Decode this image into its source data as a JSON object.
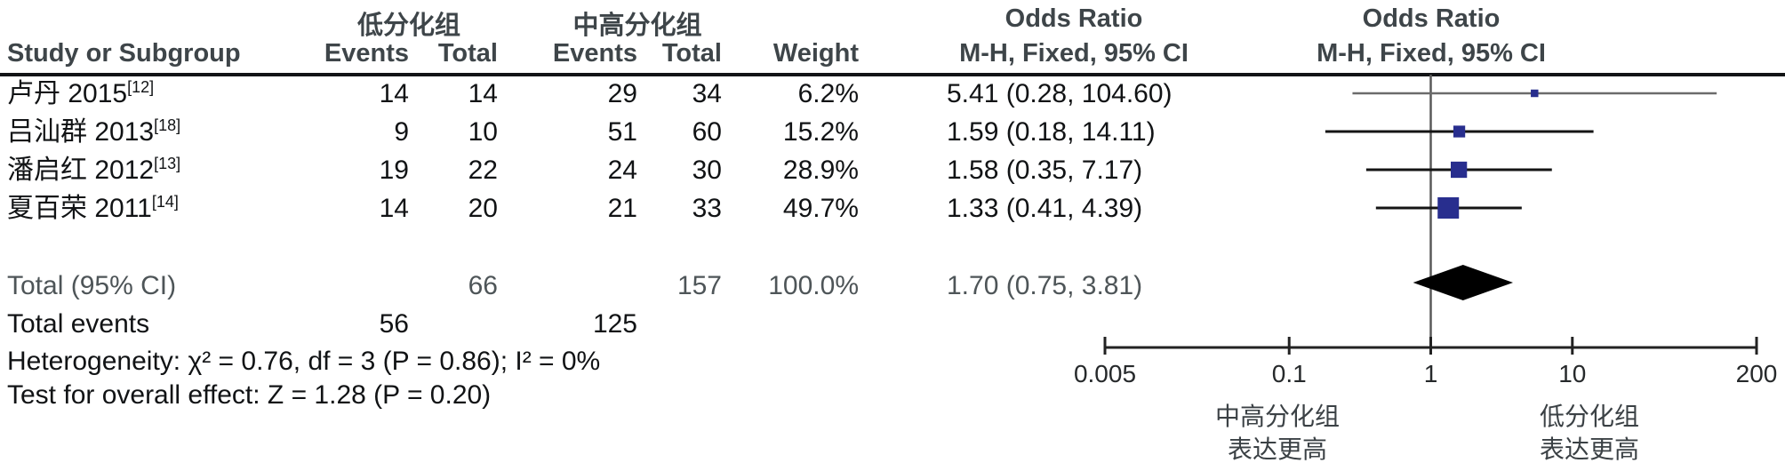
{
  "table": {
    "headers": {
      "study": "Study or Subgroup",
      "group1_name": "低分化组",
      "group2_name": "中高分化组",
      "events": "Events",
      "total": "Total",
      "weight": "Weight",
      "or_line1": "Odds Ratio",
      "or_line2": "M-H, Fixed, 95% CI",
      "plot_line1": "Odds Ratio",
      "plot_line2": "M-H, Fixed, 95% CI"
    },
    "rows": [
      {
        "study": "卢丹 2015",
        "ref": "[12]",
        "e1": "14",
        "t1": "14",
        "e2": "29",
        "t2": "34",
        "weight": "6.2%",
        "or_text": "5.41 (0.28, 104.60)"
      },
      {
        "study": "吕汕群 2013",
        "ref": "[18]",
        "e1": "9",
        "t1": "10",
        "e2": "51",
        "t2": "60",
        "weight": "15.2%",
        "or_text": "1.59 (0.18, 14.11)"
      },
      {
        "study": "潘启红 2012",
        "ref": "[13]",
        "e1": "19",
        "t1": "22",
        "e2": "24",
        "t2": "30",
        "weight": "28.9%",
        "or_text": "1.58 (0.35, 7.17)"
      },
      {
        "study": "夏百荣 2011",
        "ref": "[14]",
        "e1": "14",
        "t1": "20",
        "e2": "21",
        "t2": "33",
        "weight": "49.7%",
        "or_text": "1.33 (0.41, 4.39)"
      }
    ],
    "total_row": {
      "label": "Total (95% CI)",
      "t1": "66",
      "t2": "157",
      "weight": "100.0%",
      "or_text": "1.70 (0.75, 3.81)"
    },
    "total_events": {
      "label": "Total events",
      "e1": "56",
      "e2": "125"
    },
    "heterogeneity": "Heterogeneity: χ² = 0.76, df = 3 (P = 0.86); I² = 0%",
    "overall_effect": "Test for overall effect: Z = 1.28 (P = 0.20)"
  },
  "chart_data": {
    "type": "forest",
    "effect_measure": "Odds Ratio",
    "method": "M-H, Fixed, 95% CI",
    "scale": "log",
    "xlim": [
      0.005,
      200
    ],
    "axis_ticks": [
      "0.005",
      "0.1",
      "1",
      "10",
      "200"
    ],
    "axis_tick_values": [
      0.005,
      0.1,
      1,
      10,
      200
    ],
    "studies": [
      {
        "name": "卢丹 2015",
        "or": 5.41,
        "ci_low": 0.28,
        "ci_high": 104.6,
        "weight_pct": 6.2
      },
      {
        "name": "吕汕群 2013",
        "or": 1.59,
        "ci_low": 0.18,
        "ci_high": 14.11,
        "weight_pct": 15.2
      },
      {
        "name": "潘启红 2012",
        "or": 1.58,
        "ci_low": 0.35,
        "ci_high": 7.17,
        "weight_pct": 28.9
      },
      {
        "name": "夏百荣 2011",
        "or": 1.33,
        "ci_low": 0.41,
        "ci_high": 4.39,
        "weight_pct": 49.7
      }
    ],
    "total": {
      "or": 1.7,
      "ci_low": 0.75,
      "ci_high": 3.81
    },
    "left_label": [
      "中高分化组",
      "表达更高"
    ],
    "right_label": [
      "低分化组",
      "表达更高"
    ],
    "square_color": "#282e8e",
    "diamond_color": "#000000",
    "ci_line_color": "#141414",
    "first_row_ci_color": "#6b6b6b",
    "axis_color": "#222222"
  }
}
